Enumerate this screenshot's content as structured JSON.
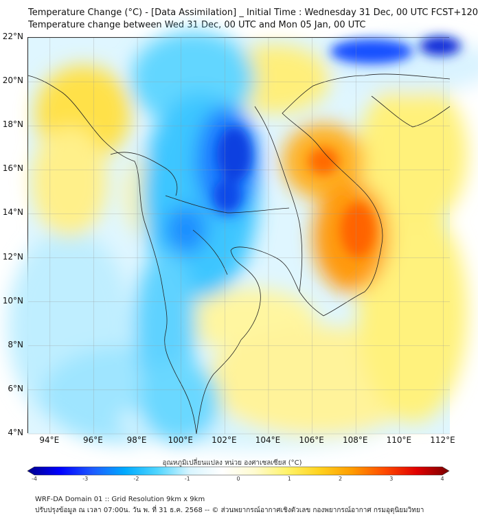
{
  "header": {
    "title_line1": "Temperature Change (°C) - [Data Assimilation] _ Initial Time : Wednesday 31 Dec, 00 UTC FCST+120",
    "title_line2": "Temperature change between Wed 31 Dec, 00 UTC and Mon 05 Jan, 00 UTC"
  },
  "map": {
    "lat_labels": [
      "22°N",
      "20°N",
      "18°N",
      "16°N",
      "14°N",
      "12°N",
      "10°N",
      "8°N",
      "6°N",
      "4°N"
    ],
    "lon_labels": [
      "94°E",
      "96°E",
      "98°E",
      "100°E",
      "102°E",
      "104°E",
      "106°E",
      "108°E",
      "110°E",
      "112°E"
    ],
    "lat_range": [
      4,
      22
    ],
    "lon_range": [
      93,
      112.3
    ]
  },
  "colorbar": {
    "title": "อุณหภูมิเปลี่ยนแปลง หน่วย องศาเซลเซียส (°C)",
    "tick_labels": [
      "-4",
      "-3",
      "-2",
      "-1",
      "0",
      "1",
      "2",
      "3",
      "4"
    ],
    "range": [
      -4,
      4
    ],
    "colors": [
      "#00008b",
      "#0000ff",
      "#1e5aff",
      "#00aaff",
      "#4fd5ff",
      "#d8f5ff",
      "#ffffff",
      "#fffbd0",
      "#fff36a",
      "#ffd21e",
      "#ff9c00",
      "#ff4b00",
      "#e00000",
      "#7a0000"
    ]
  },
  "footer": {
    "line1": "WRF-DA Domain 01 :: Grid Resolution 9km x 9km",
    "line2": "ปรับปรุงข้อมูล ณ เวลา 07:00น. วัน พ. ที่ 31 ธ.ค. 2568 -- © ส่วนพยากรณ์อากาศเชิงตัวเลข กองพยากรณ์อากาศ กรมอุตุนิยมวิทยา"
  }
}
